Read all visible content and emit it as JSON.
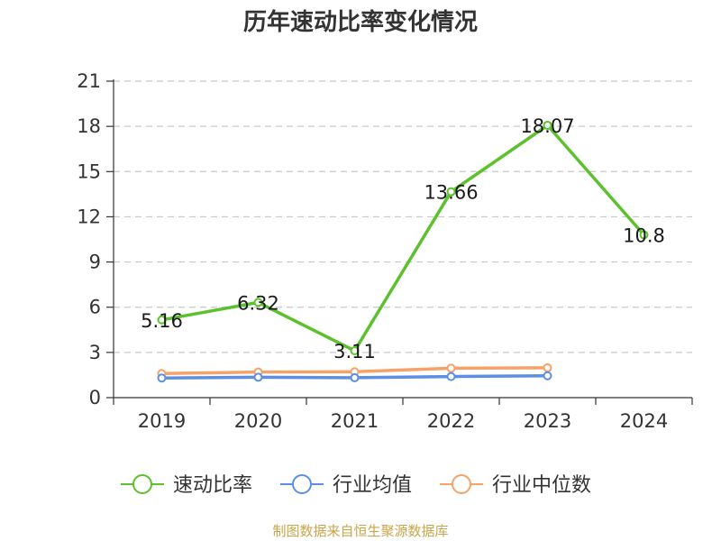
{
  "chart_data": {
    "type": "line",
    "title": "历年速动比率变化情况",
    "categories": [
      "2019",
      "2020",
      "2021",
      "2022",
      "2023",
      "2024"
    ],
    "y_ticks": [
      "0",
      "3",
      "6",
      "9",
      "12",
      "15",
      "18",
      "21"
    ],
    "ylim": [
      0,
      21
    ],
    "grid": true,
    "legend_position": "bottom",
    "series": [
      {
        "name": "速动比率",
        "color": "#5cc12d",
        "values": [
          5.16,
          6.32,
          3.11,
          13.66,
          18.07,
          10.8
        ],
        "labels": [
          "5.16",
          "6.32",
          "3.11",
          "13.66",
          "18.07",
          "10.8"
        ]
      },
      {
        "name": "行业均值",
        "color": "#5b8ee6",
        "values": [
          1.3,
          1.35,
          1.32,
          1.4,
          1.45,
          null
        ]
      },
      {
        "name": "行业中位数",
        "color": "#f5a26a",
        "values": [
          1.6,
          1.7,
          1.72,
          1.95,
          1.98,
          null
        ]
      }
    ],
    "source": "制图数据来自恒生聚源数据库"
  }
}
